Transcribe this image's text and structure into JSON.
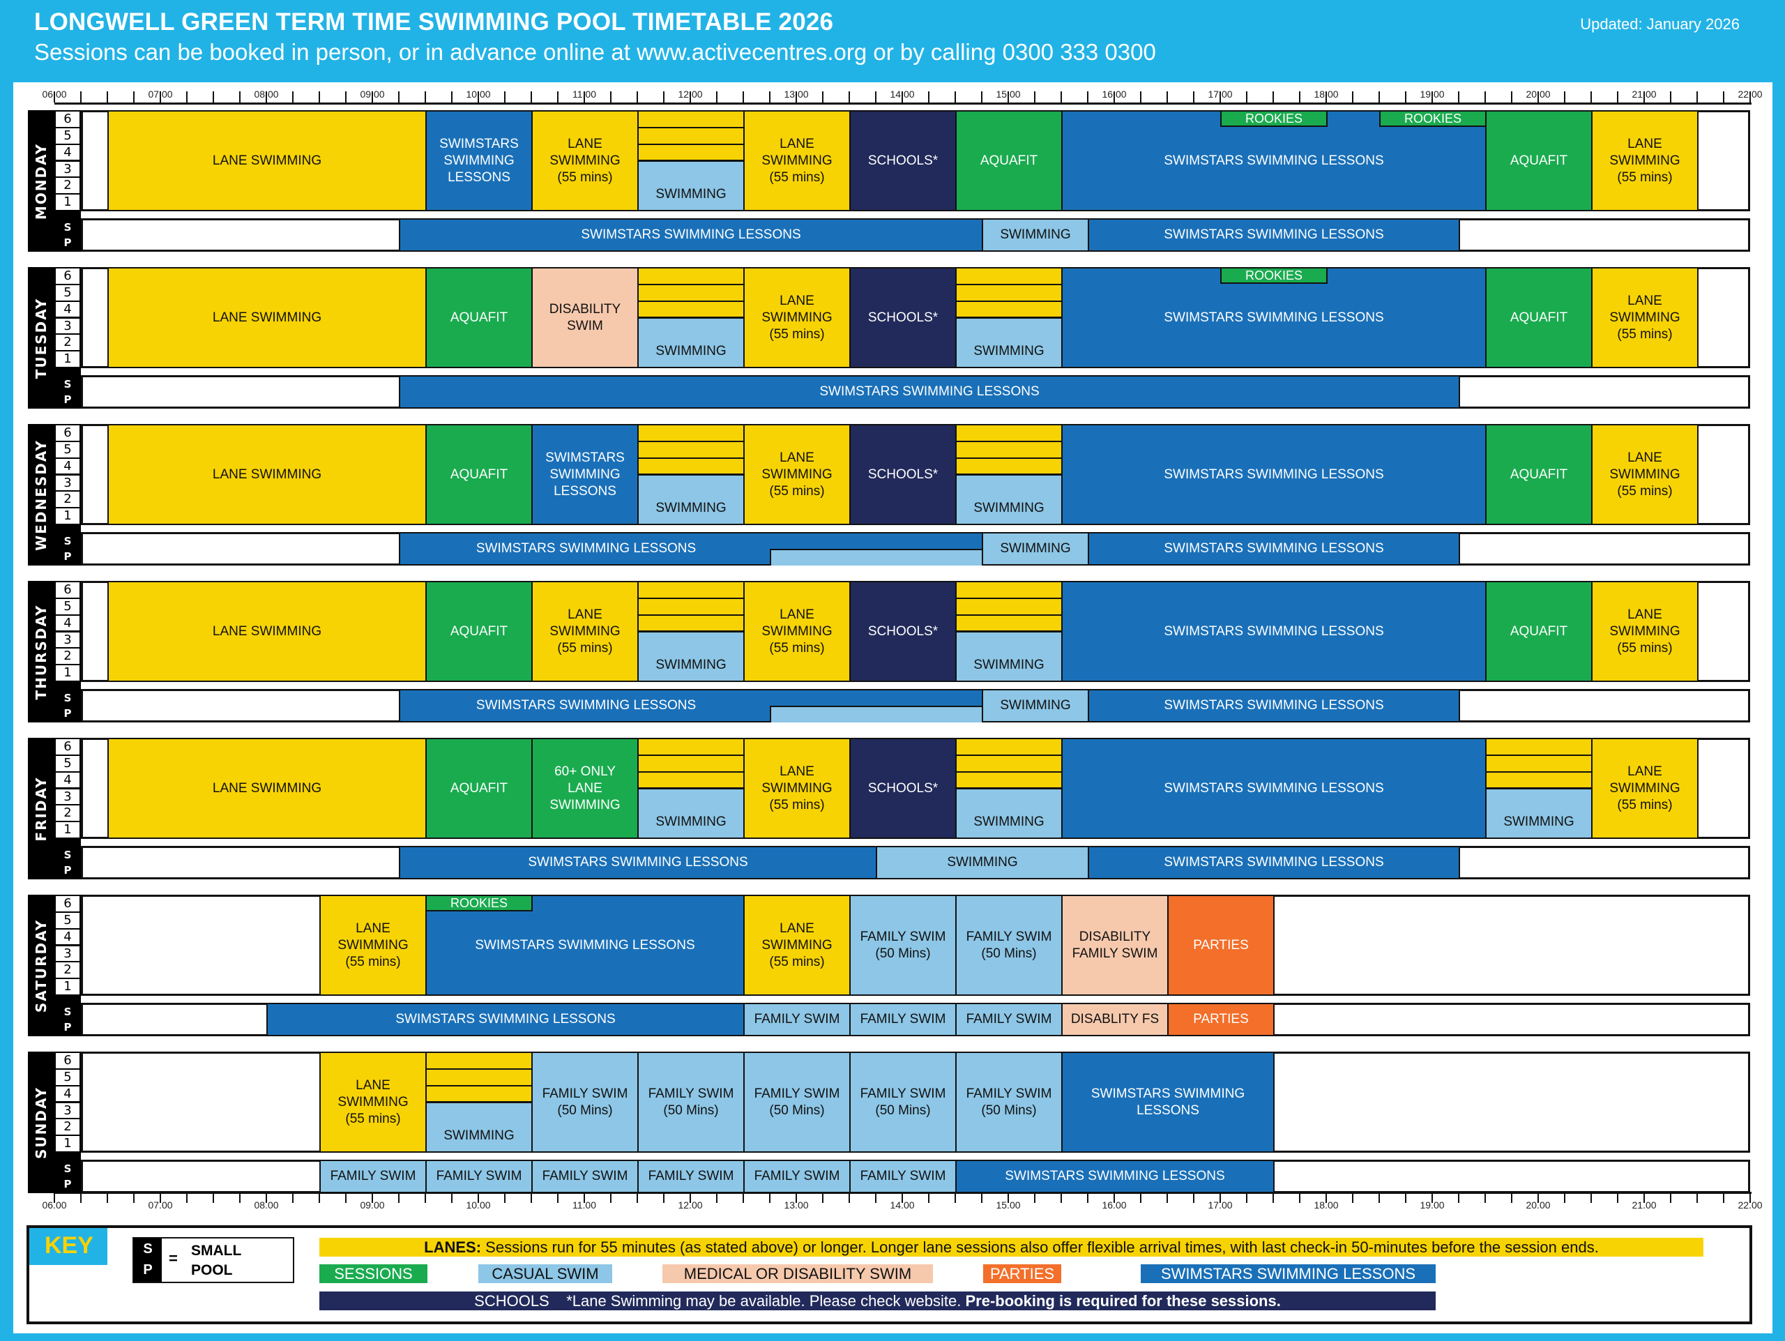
{
  "header": {
    "title": "LONGWELL GREEN TERM TIME SWIMMING POOL TIMETABLE 2026",
    "subtitle": "Sessions can be booked in person, or in advance online at www.activecentres.org or by calling 0300 333 0300",
    "updated": "Updated: January 2026"
  },
  "colors": {
    "background": "#22b3e6",
    "lanes": "#f7d303",
    "sessions": "#1aab4f",
    "casual_swim": "#8dc6e6",
    "medical_disability": "#f6c9ad",
    "parties": "#f36f2a",
    "swimstars": "#1a70b8",
    "schools": "#212a5a"
  },
  "axis": {
    "labels": [
      "06.00",
      "07.00",
      "08.00",
      "09.00",
      "10.00",
      "11.00",
      "12.00",
      "13.00",
      "14.00",
      "15.00",
      "16.00",
      "17.00",
      "18.00",
      "19.00",
      "20.00",
      "21.00",
      "22.00"
    ]
  },
  "lane_numbers": [
    "6",
    "5",
    "4",
    "3",
    "2",
    "1"
  ],
  "sp_label": [
    "S",
    "P"
  ],
  "days": [
    {
      "name": "MONDAY",
      "main": [
        {
          "start": 6.5,
          "end": 9.5,
          "type": "lane",
          "label": "LANE SWIMMING"
        },
        {
          "start": 9.5,
          "end": 10.5,
          "type": "swimstars",
          "label": "SWIMSTARS\nSWIMMING\nLESSONS"
        },
        {
          "start": 10.5,
          "end": 11.5,
          "type": "lane",
          "label": "LANE\nSWIMMING\n(55 mins)"
        },
        {
          "start": 11.5,
          "end": 12.5,
          "type": "split",
          "label": "SWIMMING"
        },
        {
          "start": 12.5,
          "end": 13.5,
          "type": "lane",
          "label": "LANE\nSWIMMING\n(55 mins)"
        },
        {
          "start": 13.5,
          "end": 14.5,
          "type": "school",
          "label": "SCHOOLS*"
        },
        {
          "start": 14.5,
          "end": 15.5,
          "type": "session",
          "label": "AQUAFIT"
        },
        {
          "start": 15.5,
          "end": 19.5,
          "type": "swimstars",
          "label": "SWIMSTARS SWIMMING LESSONS"
        },
        {
          "start": 17.0,
          "end": 18.0,
          "type": "rookies",
          "label": "ROOKIES"
        },
        {
          "start": 18.5,
          "end": 19.5,
          "type": "rookies",
          "label": "ROOKIES"
        },
        {
          "start": 19.5,
          "end": 20.5,
          "type": "session",
          "label": "AQUAFIT"
        },
        {
          "start": 20.5,
          "end": 21.5,
          "type": "lane",
          "label": "LANE\nSWIMMING\n(55 mins)"
        }
      ],
      "sp": [
        {
          "start": 9.25,
          "end": 14.75,
          "type": "swimstars",
          "label": "SWIMSTARS SWIMMING LESSONS"
        },
        {
          "start": 14.75,
          "end": 15.75,
          "type": "casual",
          "label": "SWIMMING"
        },
        {
          "start": 15.75,
          "end": 19.25,
          "type": "swimstars",
          "label": "SWIMSTARS SWIMMING LESSONS"
        }
      ]
    },
    {
      "name": "TUESDAY",
      "main": [
        {
          "start": 6.5,
          "end": 9.5,
          "type": "lane",
          "label": "LANE SWIMMING"
        },
        {
          "start": 9.5,
          "end": 10.5,
          "type": "session",
          "label": "AQUAFIT"
        },
        {
          "start": 10.5,
          "end": 11.5,
          "type": "medical",
          "label": "DISABILITY\nSWIM"
        },
        {
          "start": 11.5,
          "end": 12.5,
          "type": "split",
          "label": "SWIMMING"
        },
        {
          "start": 12.5,
          "end": 13.5,
          "type": "lane",
          "label": "LANE\nSWIMMING\n(55 mins)"
        },
        {
          "start": 13.5,
          "end": 14.5,
          "type": "school",
          "label": "SCHOOLS*"
        },
        {
          "start": 14.5,
          "end": 15.5,
          "type": "split",
          "label": "SWIMMING"
        },
        {
          "start": 15.5,
          "end": 19.5,
          "type": "swimstars",
          "label": "SWIMSTARS SWIMMING LESSONS"
        },
        {
          "start": 17.0,
          "end": 18.0,
          "type": "rookies",
          "label": "ROOKIES"
        },
        {
          "start": 19.5,
          "end": 20.5,
          "type": "session",
          "label": "AQUAFIT"
        },
        {
          "start": 20.5,
          "end": 21.5,
          "type": "lane",
          "label": "LANE\nSWIMMING\n(55 mins)"
        }
      ],
      "sp": [
        {
          "start": 9.25,
          "end": 19.25,
          "type": "swimstars",
          "label": "SWIMSTARS SWIMMING LESSONS"
        }
      ]
    },
    {
      "name": "WEDNESDAY",
      "main": [
        {
          "start": 6.5,
          "end": 9.5,
          "type": "lane",
          "label": "LANE SWIMMING"
        },
        {
          "start": 9.5,
          "end": 10.5,
          "type": "session",
          "label": "AQUAFIT"
        },
        {
          "start": 10.5,
          "end": 11.5,
          "type": "swimstars",
          "label": "SWIMSTARS\nSWIMMING\nLESSONS"
        },
        {
          "start": 11.5,
          "end": 12.5,
          "type": "split",
          "label": "SWIMMING"
        },
        {
          "start": 12.5,
          "end": 13.5,
          "type": "lane",
          "label": "LANE\nSWIMMING\n(55 mins)"
        },
        {
          "start": 13.5,
          "end": 14.5,
          "type": "school",
          "label": "SCHOOLS*"
        },
        {
          "start": 14.5,
          "end": 15.5,
          "type": "split",
          "label": "SWIMMING"
        },
        {
          "start": 15.5,
          "end": 19.5,
          "type": "swimstars",
          "label": "SWIMSTARS SWIMMING LESSONS"
        },
        {
          "start": 19.5,
          "end": 20.5,
          "type": "session",
          "label": "AQUAFIT"
        },
        {
          "start": 20.5,
          "end": 21.5,
          "type": "lane",
          "label": "LANE\nSWIMMING\n(55 mins)"
        }
      ],
      "sp": [
        {
          "start": 9.25,
          "end": 14.75,
          "type": "swimstars",
          "label": "SWIMSTARS SWIMMING LESSONS",
          "step": {
            "start": 12.75,
            "end": 14.75,
            "type": "casual"
          }
        },
        {
          "start": 14.75,
          "end": 15.75,
          "type": "casual",
          "label": "SWIMMING"
        },
        {
          "start": 15.75,
          "end": 19.25,
          "type": "swimstars",
          "label": "SWIMSTARS SWIMMING LESSONS"
        }
      ]
    },
    {
      "name": "THURSDAY",
      "main": [
        {
          "start": 6.5,
          "end": 9.5,
          "type": "lane",
          "label": "LANE SWIMMING"
        },
        {
          "start": 9.5,
          "end": 10.5,
          "type": "session",
          "label": "AQUAFIT"
        },
        {
          "start": 10.5,
          "end": 11.5,
          "type": "lane",
          "label": "LANE\nSWIMMING\n(55 mins)"
        },
        {
          "start": 11.5,
          "end": 12.5,
          "type": "split",
          "label": "SWIMMING"
        },
        {
          "start": 12.5,
          "end": 13.5,
          "type": "lane",
          "label": "LANE\nSWIMMING\n(55 mins)"
        },
        {
          "start": 13.5,
          "end": 14.5,
          "type": "school",
          "label": "SCHOOLS*"
        },
        {
          "start": 14.5,
          "end": 15.5,
          "type": "split",
          "label": "SWIMMING"
        },
        {
          "start": 15.5,
          "end": 19.5,
          "type": "swimstars",
          "label": "SWIMSTARS SWIMMING LESSONS"
        },
        {
          "start": 19.5,
          "end": 20.5,
          "type": "session",
          "label": "AQUAFIT"
        },
        {
          "start": 20.5,
          "end": 21.5,
          "type": "lane",
          "label": "LANE\nSWIMMING\n(55 mins)"
        }
      ],
      "sp": [
        {
          "start": 9.25,
          "end": 14.75,
          "type": "swimstars",
          "label": "SWIMSTARS SWIMMING LESSONS",
          "step": {
            "start": 12.75,
            "end": 14.75,
            "type": "casual"
          }
        },
        {
          "start": 14.75,
          "end": 15.75,
          "type": "casual",
          "label": "SWIMMING"
        },
        {
          "start": 15.75,
          "end": 19.25,
          "type": "swimstars",
          "label": "SWIMSTARS SWIMMING LESSONS"
        }
      ]
    },
    {
      "name": "FRIDAY",
      "main": [
        {
          "start": 6.5,
          "end": 9.5,
          "type": "lane",
          "label": "LANE SWIMMING"
        },
        {
          "start": 9.5,
          "end": 10.5,
          "type": "session",
          "label": "AQUAFIT"
        },
        {
          "start": 10.5,
          "end": 11.5,
          "type": "session",
          "label": "60+ ONLY\nLANE\nSWIMMING"
        },
        {
          "start": 11.5,
          "end": 12.5,
          "type": "split",
          "label": "SWIMMING"
        },
        {
          "start": 12.5,
          "end": 13.5,
          "type": "lane",
          "label": "LANE\nSWIMMING\n(55 mins)"
        },
        {
          "start": 13.5,
          "end": 14.5,
          "type": "school",
          "label": "SCHOOLS*"
        },
        {
          "start": 14.5,
          "end": 15.5,
          "type": "split",
          "label": "SWIMMING"
        },
        {
          "start": 15.5,
          "end": 19.5,
          "type": "swimstars",
          "label": "SWIMSTARS SWIMMING LESSONS"
        },
        {
          "start": 19.5,
          "end": 20.5,
          "type": "split",
          "label": "SWIMMING"
        },
        {
          "start": 20.5,
          "end": 21.5,
          "type": "lane",
          "label": "LANE\nSWIMMING\n(55 mins)"
        }
      ],
      "sp": [
        {
          "start": 9.25,
          "end": 13.75,
          "type": "swimstars",
          "label": "SWIMSTARS SWIMMING LESSONS"
        },
        {
          "start": 13.75,
          "end": 15.75,
          "type": "casual",
          "label": "SWIMMING"
        },
        {
          "start": 15.75,
          "end": 19.25,
          "type": "swimstars",
          "label": "SWIMSTARS SWIMMING LESSONS"
        }
      ]
    },
    {
      "name": "SATURDAY",
      "main": [
        {
          "start": 8.5,
          "end": 9.5,
          "type": "lane",
          "label": "LANE\nSWIMMING\n(55 mins)"
        },
        {
          "start": 9.5,
          "end": 12.5,
          "type": "swimstars",
          "label": "SWIMSTARS SWIMMING LESSONS"
        },
        {
          "start": 9.5,
          "end": 10.5,
          "type": "rookies",
          "label": "ROOKIES"
        },
        {
          "start": 12.5,
          "end": 13.5,
          "type": "lane",
          "label": "LANE\nSWIMMING\n(55 mins)"
        },
        {
          "start": 13.5,
          "end": 14.5,
          "type": "casual",
          "label": "FAMILY SWIM\n(50 Mins)"
        },
        {
          "start": 14.5,
          "end": 15.5,
          "type": "casual",
          "label": "FAMILY SWIM\n(50 Mins)"
        },
        {
          "start": 15.5,
          "end": 16.5,
          "type": "medical",
          "label": "DISABILITY\nFAMILY SWIM"
        },
        {
          "start": 16.5,
          "end": 17.5,
          "type": "party",
          "label": "PARTIES"
        }
      ],
      "sp": [
        {
          "start": 8.0,
          "end": 12.5,
          "type": "swimstars",
          "label": "SWIMSTARS SWIMMING LESSONS"
        },
        {
          "start": 12.5,
          "end": 13.5,
          "type": "casual",
          "label": "FAMILY SWIM"
        },
        {
          "start": 13.5,
          "end": 14.5,
          "type": "casual",
          "label": "FAMILY SWIM"
        },
        {
          "start": 14.5,
          "end": 15.5,
          "type": "casual",
          "label": "FAMILY SWIM"
        },
        {
          "start": 15.5,
          "end": 16.5,
          "type": "medical",
          "label": "DISABLITY FS"
        },
        {
          "start": 16.5,
          "end": 17.5,
          "type": "party",
          "label": "PARTIES"
        }
      ]
    },
    {
      "name": "SUNDAY",
      "main": [
        {
          "start": 8.5,
          "end": 9.5,
          "type": "lane",
          "label": "LANE\nSWIMMING\n(55 mins)"
        },
        {
          "start": 9.5,
          "end": 10.5,
          "type": "split",
          "label": "SWIMMING"
        },
        {
          "start": 10.5,
          "end": 11.5,
          "type": "casual",
          "label": "FAMILY SWIM\n(50 Mins)"
        },
        {
          "start": 11.5,
          "end": 12.5,
          "type": "casual",
          "label": "FAMILY SWIM\n(50 Mins)"
        },
        {
          "start": 12.5,
          "end": 13.5,
          "type": "casual",
          "label": "FAMILY SWIM\n(50 Mins)"
        },
        {
          "start": 13.5,
          "end": 14.5,
          "type": "casual",
          "label": "FAMILY SWIM\n(50 Mins)"
        },
        {
          "start": 14.5,
          "end": 15.5,
          "type": "casual",
          "label": "FAMILY SWIM\n(50 Mins)"
        },
        {
          "start": 15.5,
          "end": 17.5,
          "type": "swimstars",
          "label": "SWIMSTARS SWIMMING\nLESSONS"
        }
      ],
      "sp": [
        {
          "start": 8.5,
          "end": 9.5,
          "type": "casual",
          "label": "FAMILY SWIM"
        },
        {
          "start": 9.5,
          "end": 10.5,
          "type": "casual",
          "label": "FAMILY SWIM"
        },
        {
          "start": 10.5,
          "end": 11.5,
          "type": "casual",
          "label": "FAMILY SWIM"
        },
        {
          "start": 11.5,
          "end": 12.5,
          "type": "casual",
          "label": "FAMILY SWIM"
        },
        {
          "start": 12.5,
          "end": 13.5,
          "type": "casual",
          "label": "FAMILY SWIM"
        },
        {
          "start": 13.5,
          "end": 14.5,
          "type": "casual",
          "label": "FAMILY SWIM"
        },
        {
          "start": 14.5,
          "end": 17.5,
          "type": "swimstars",
          "label": "SWIMSTARS SWIMMING LESSONS"
        }
      ]
    }
  ],
  "key": {
    "title": "KEY",
    "sp_letters": [
      "S",
      "P"
    ],
    "sp_equals": "=",
    "sp_text": [
      "SMALL",
      "POOL"
    ],
    "lanes_bold": "LANES:",
    "lanes_text": " Sessions run for 55 minutes (as stated above) or longer.  Longer lane sessions also offer flexible arrival times, with last check-in 50-minutes before the session ends.",
    "sessions": "SESSIONS",
    "casual": "CASUAL SWIM",
    "medical": "MEDICAL OR DISABILITY SWIM",
    "parties": "PARTIES",
    "swimstars": "SWIMSTARS SWIMMING LESSONS",
    "schools": "SCHOOLS",
    "schools_note": "*Lane Swimming may be available. Please check website.",
    "schools_bold": "Pre-booking is required for these sessions."
  }
}
